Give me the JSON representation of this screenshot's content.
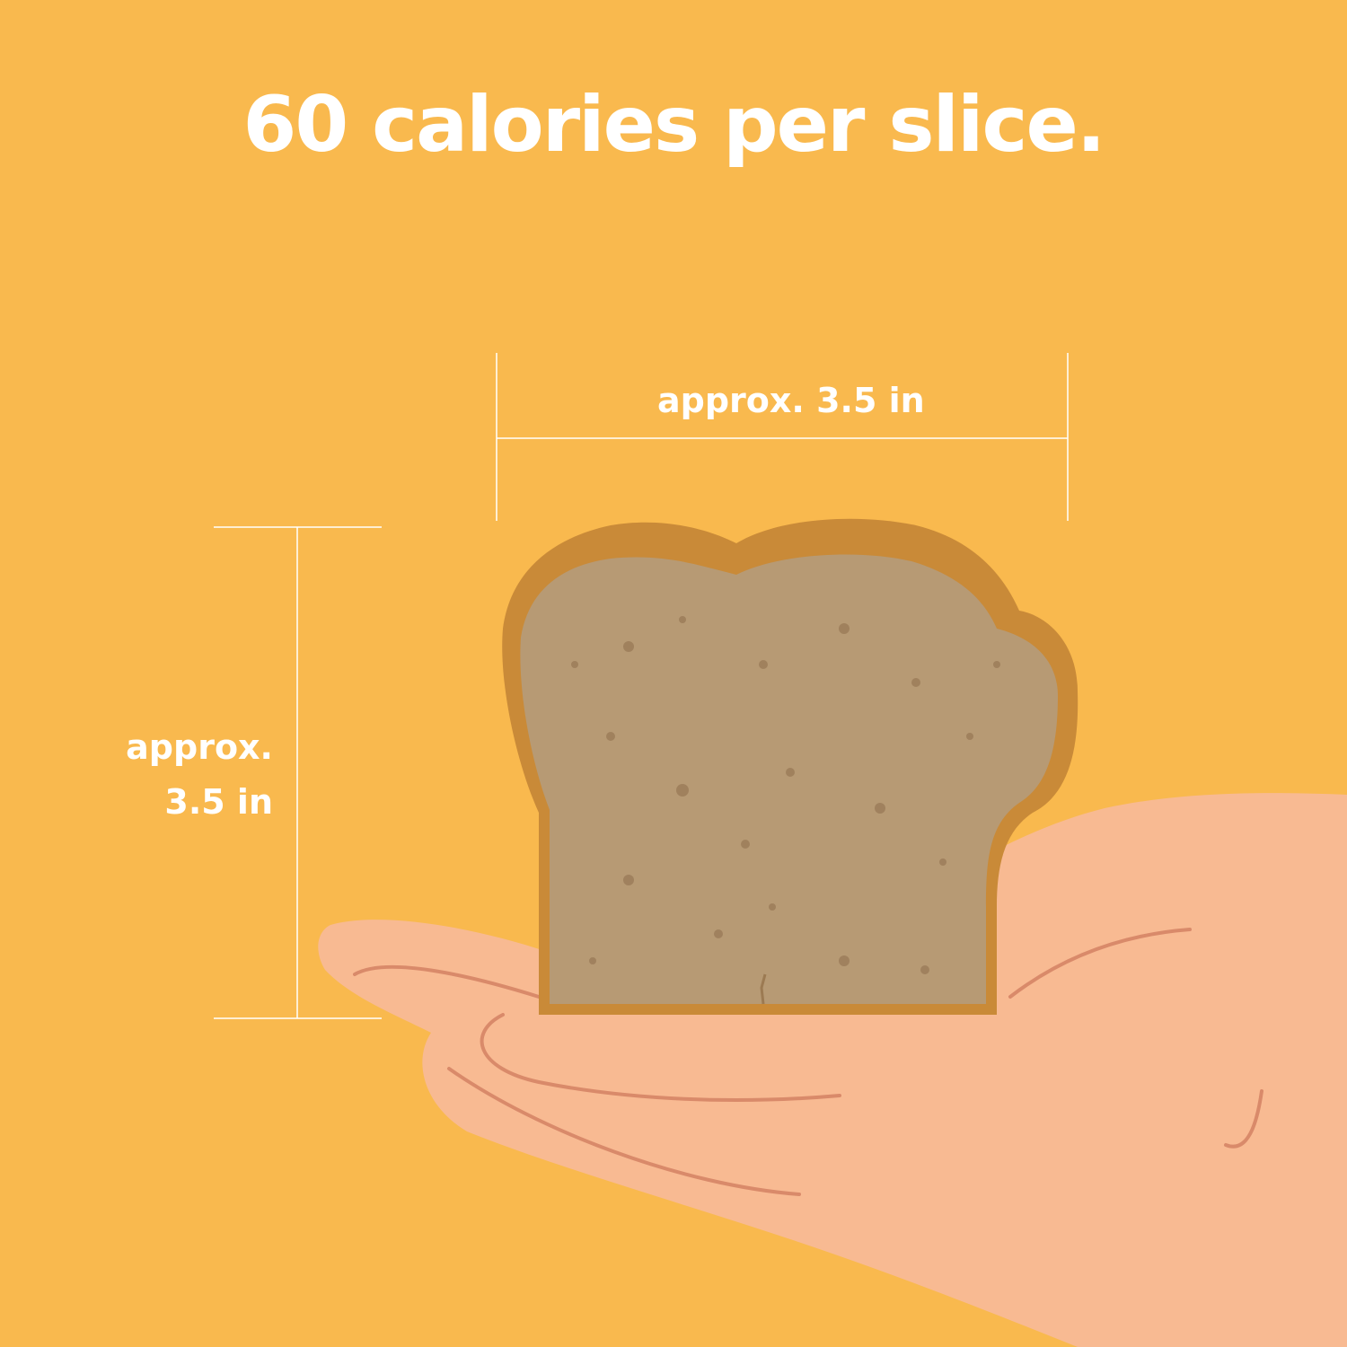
{
  "headline": "60 calories per slice.",
  "dimensions": {
    "width_label": "approx. 3.5 in",
    "height_label_line1": "approx.",
    "height_label_line2": "3.5 in"
  },
  "colors": {
    "background": "#F9B94E",
    "text": "#FFFFFF",
    "hand": "#F8BA92",
    "hand_lines": "#D98A6A",
    "crust": "#C98A38",
    "crumb": "#B79A74"
  },
  "icons": {
    "hand": "open-palm-hand",
    "bread": "bread-slice"
  }
}
